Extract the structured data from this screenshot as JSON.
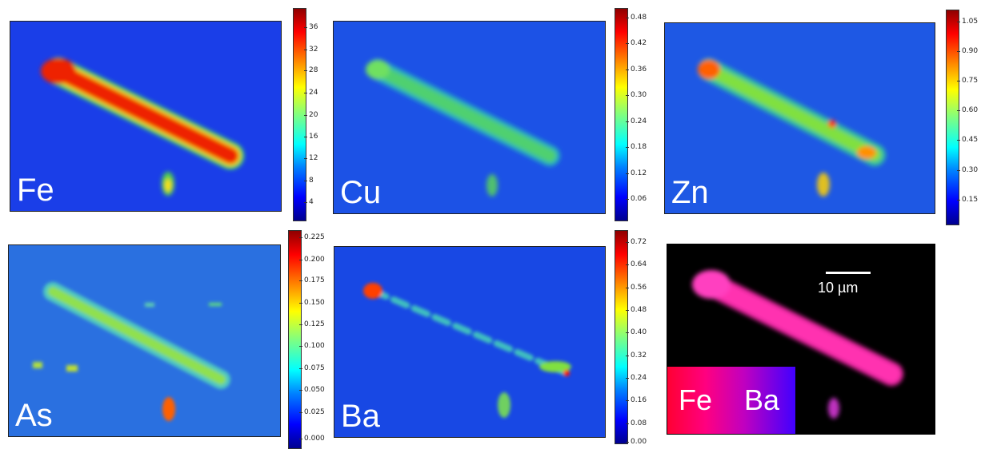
{
  "panels": [
    {
      "element": "Fe",
      "ticks": [
        "36",
        "32",
        "28",
        "24",
        "20",
        "16",
        "12",
        "8",
        "4"
      ]
    },
    {
      "element": "Cu",
      "ticks": [
        "0.48",
        "0.42",
        "0.36",
        "0.30",
        "0.24",
        "0.18",
        "0.12",
        "0.06"
      ]
    },
    {
      "element": "Zn",
      "ticks": [
        "1.05",
        "0.90",
        "0.75",
        "0.60",
        "0.45",
        "0.30",
        "0.15"
      ]
    },
    {
      "element": "As",
      "ticks": [
        "0.225",
        "0.200",
        "0.175",
        "0.150",
        "0.125",
        "0.100",
        "0.075",
        "0.050",
        "0.025",
        "0.000"
      ]
    },
    {
      "element": "Ba",
      "ticks": [
        "0.72",
        "0.64",
        "0.56",
        "0.48",
        "0.40",
        "0.32",
        "0.24",
        "0.16",
        "0.08",
        "0.00"
      ]
    }
  ],
  "overlay": {
    "legend_left": "Fe",
    "legend_right": "Ba",
    "scale_label": "10 µm"
  },
  "colors": {
    "background_low": "#1540e6",
    "fe": "#ff0033",
    "ba": "#4000ff",
    "overlay_bg": "#000000"
  }
}
